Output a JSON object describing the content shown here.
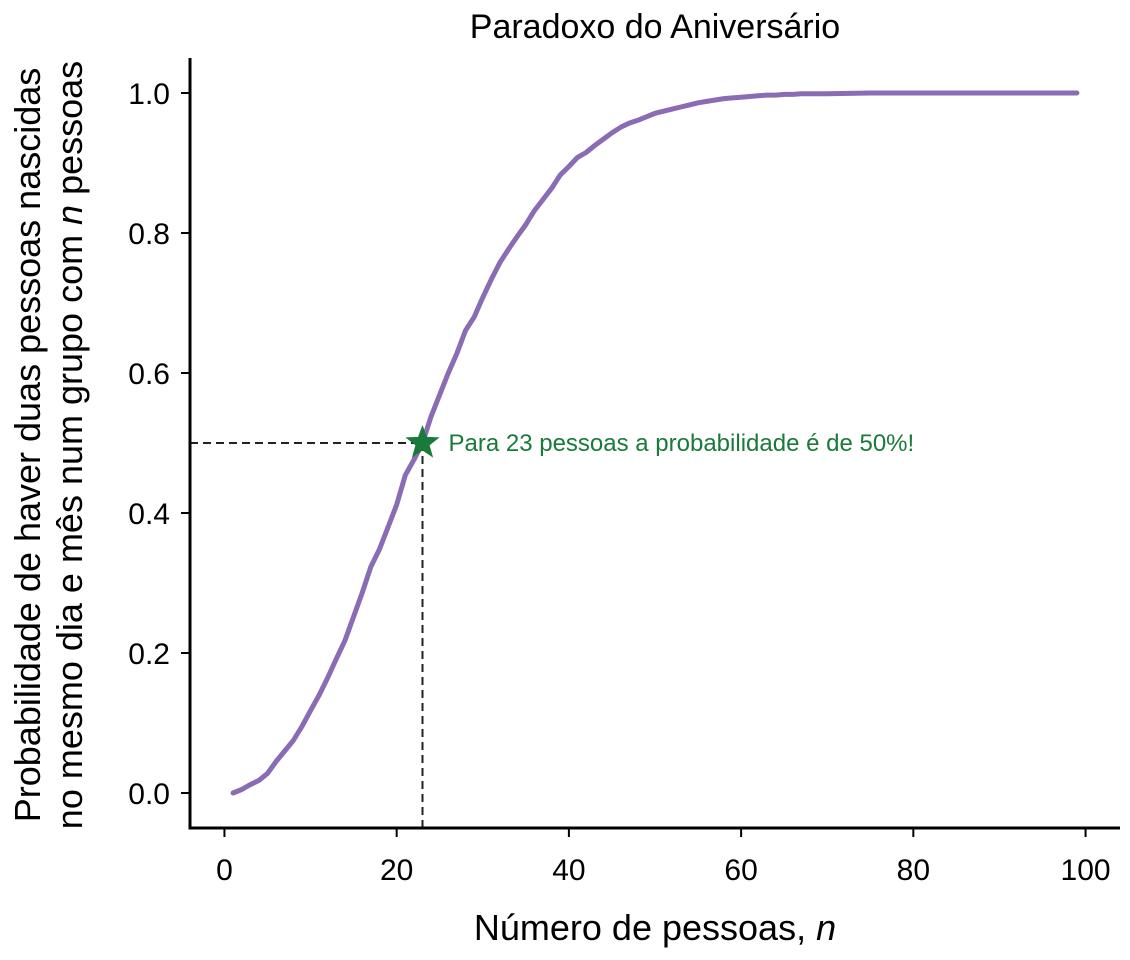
{
  "chart_data": {
    "type": "line",
    "title": "Paradoxo do Aniversário",
    "xlabel_text": "Número de pessoas, ",
    "xlabel_var": "n",
    "ylabel_line1": "Probabilidade de haver duas pessoas nascidas",
    "ylabel_line2_text": "no mesmo dia e mês num grupo com ",
    "ylabel_line2_var": "n",
    "ylabel_line2_suffix": " pessoas",
    "xlim": [
      -4,
      104
    ],
    "ylim": [
      -0.05,
      1.05
    ],
    "xticks": [
      0,
      20,
      40,
      60,
      80,
      100
    ],
    "xtick_labels": [
      "0",
      "20",
      "40",
      "60",
      "80",
      "100"
    ],
    "yticks": [
      0.0,
      0.2,
      0.4,
      0.6,
      0.8,
      1.0
    ],
    "ytick_labels": [
      "0.0",
      "0.2",
      "0.4",
      "0.6",
      "0.8",
      "1.0"
    ],
    "grid": false,
    "series": [
      {
        "color": "#8a6cb4",
        "x": [
          1,
          2,
          3,
          4,
          5,
          6,
          7,
          8,
          9,
          10,
          11,
          12,
          13,
          14,
          15,
          16,
          17,
          18,
          19,
          20,
          21,
          22,
          23,
          24,
          25,
          26,
          27,
          28,
          29,
          30,
          31,
          32,
          33,
          34,
          35,
          36,
          37,
          38,
          39,
          40,
          41,
          42,
          43,
          44,
          45,
          46,
          47,
          48,
          49,
          50,
          51,
          52,
          53,
          54,
          55,
          56,
          57,
          58,
          59,
          60,
          61,
          62,
          63,
          64,
          65,
          66,
          67,
          68,
          69,
          70,
          75,
          80,
          85,
          90,
          95,
          99
        ],
        "y": [
          0.0,
          0.005,
          0.012,
          0.018,
          0.028,
          0.045,
          0.06,
          0.075,
          0.095,
          0.118,
          0.14,
          0.165,
          0.192,
          0.218,
          0.252,
          0.286,
          0.323,
          0.348,
          0.38,
          0.412,
          0.454,
          0.476,
          0.5,
          0.538,
          0.569,
          0.6,
          0.628,
          0.661,
          0.68,
          0.708,
          0.734,
          0.758,
          0.777,
          0.795,
          0.812,
          0.832,
          0.848,
          0.864,
          0.883,
          0.895,
          0.908,
          0.915,
          0.925,
          0.934,
          0.943,
          0.951,
          0.957,
          0.961,
          0.966,
          0.971,
          0.974,
          0.977,
          0.98,
          0.983,
          0.986,
          0.988,
          0.99,
          0.992,
          0.993,
          0.994,
          0.995,
          0.996,
          0.997,
          0.997,
          0.998,
          0.998,
          0.999,
          0.999,
          0.999,
          0.999,
          1.0,
          1.0,
          1.0,
          1.0,
          1.0,
          1.0
        ]
      }
    ],
    "highlight": {
      "x": 23,
      "y": 0.5,
      "marker": "star",
      "color": "#1a7a3a",
      "label": "Para 23 pessoas a probabilidade é de 50%!"
    },
    "guide_line_color": "#222222"
  }
}
